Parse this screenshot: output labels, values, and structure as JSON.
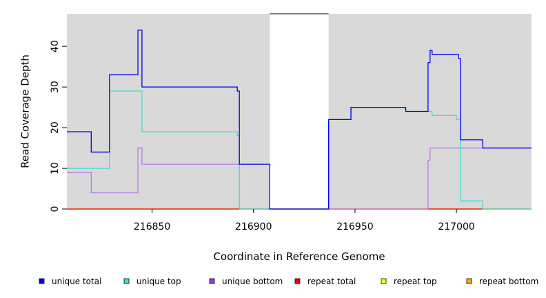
{
  "chart_data": {
    "type": "line",
    "xlabel": "Coordinate in Reference Genome",
    "ylabel": "Read Coverage Depth",
    "xlim": [
      216808,
      217037
    ],
    "ylim": [
      0,
      48
    ],
    "x_ticks": [
      216850,
      216900,
      216950,
      217000
    ],
    "y_ticks": [
      0,
      10,
      20,
      30,
      40
    ],
    "grid": false,
    "background": "#d9d9d9",
    "gap_regions": [
      [
        216908,
        216937
      ]
    ],
    "legend_position": "bottom",
    "series": [
      {
        "name": "unique total",
        "color": "#0000ee",
        "legend_color": "#0000ee",
        "x": [
          216808,
          216820,
          216820,
          216829,
          216829,
          216843,
          216843,
          216845,
          216845,
          216892,
          216892,
          216893,
          216893,
          216908,
          216908,
          216937,
          216937,
          216948,
          216948,
          216975,
          216975,
          216986,
          216986,
          216987,
          216987,
          216988,
          216988,
          217001,
          217001,
          217002,
          217002,
          217013,
          217013,
          217037
        ],
        "y": [
          19,
          19,
          14,
          14,
          33,
          33,
          44,
          44,
          30,
          30,
          29,
          29,
          11,
          11,
          0,
          0,
          22,
          22,
          25,
          25,
          24,
          24,
          36,
          36,
          39,
          39,
          38,
          38,
          37,
          37,
          17,
          17,
          15,
          15
        ]
      },
      {
        "name": "unique top",
        "color": "#40e0d0",
        "legend_color": "#40e0d0",
        "x": [
          216808,
          216829,
          216829,
          216845,
          216845,
          216892,
          216892,
          216893,
          216893,
          216908,
          216908,
          216937,
          216937,
          216948,
          216948,
          216975,
          216975,
          216986,
          216986,
          216987,
          216987,
          216988,
          216988,
          217000,
          217000,
          217002,
          217002,
          217013,
          217013,
          217037
        ],
        "y": [
          10,
          10,
          29,
          29,
          19,
          19,
          18,
          18,
          0,
          0,
          0,
          0,
          22,
          22,
          25,
          25,
          24,
          24,
          24,
          24,
          24,
          24,
          23,
          23,
          22,
          22,
          2,
          2,
          0,
          0
        ]
      },
      {
        "name": "unique bottom",
        "color": "#b879e8",
        "legend_color": "#9b30ff",
        "x": [
          216808,
          216820,
          216820,
          216843,
          216843,
          216845,
          216845,
          216893,
          216893,
          216986,
          216986,
          216987,
          216987,
          217037
        ],
        "y": [
          9,
          9,
          4,
          4,
          15,
          15,
          11,
          11,
          0,
          0,
          12,
          12,
          15,
          15
        ]
      },
      {
        "name": "repeat total",
        "color": "#ee0000",
        "legend_color": "#ee0000",
        "x": [
          216808,
          217037
        ],
        "y": [
          0,
          0
        ]
      },
      {
        "name": "repeat top",
        "color": "#eeee00",
        "legend_color": "#ffff00",
        "x": [
          216808,
          217037
        ],
        "y": [
          0,
          0
        ]
      },
      {
        "name": "repeat bottom",
        "color": "#ffa500",
        "legend_color": "#ffa500",
        "x": [
          216808,
          217037
        ],
        "y": [
          0,
          0
        ]
      }
    ]
  }
}
